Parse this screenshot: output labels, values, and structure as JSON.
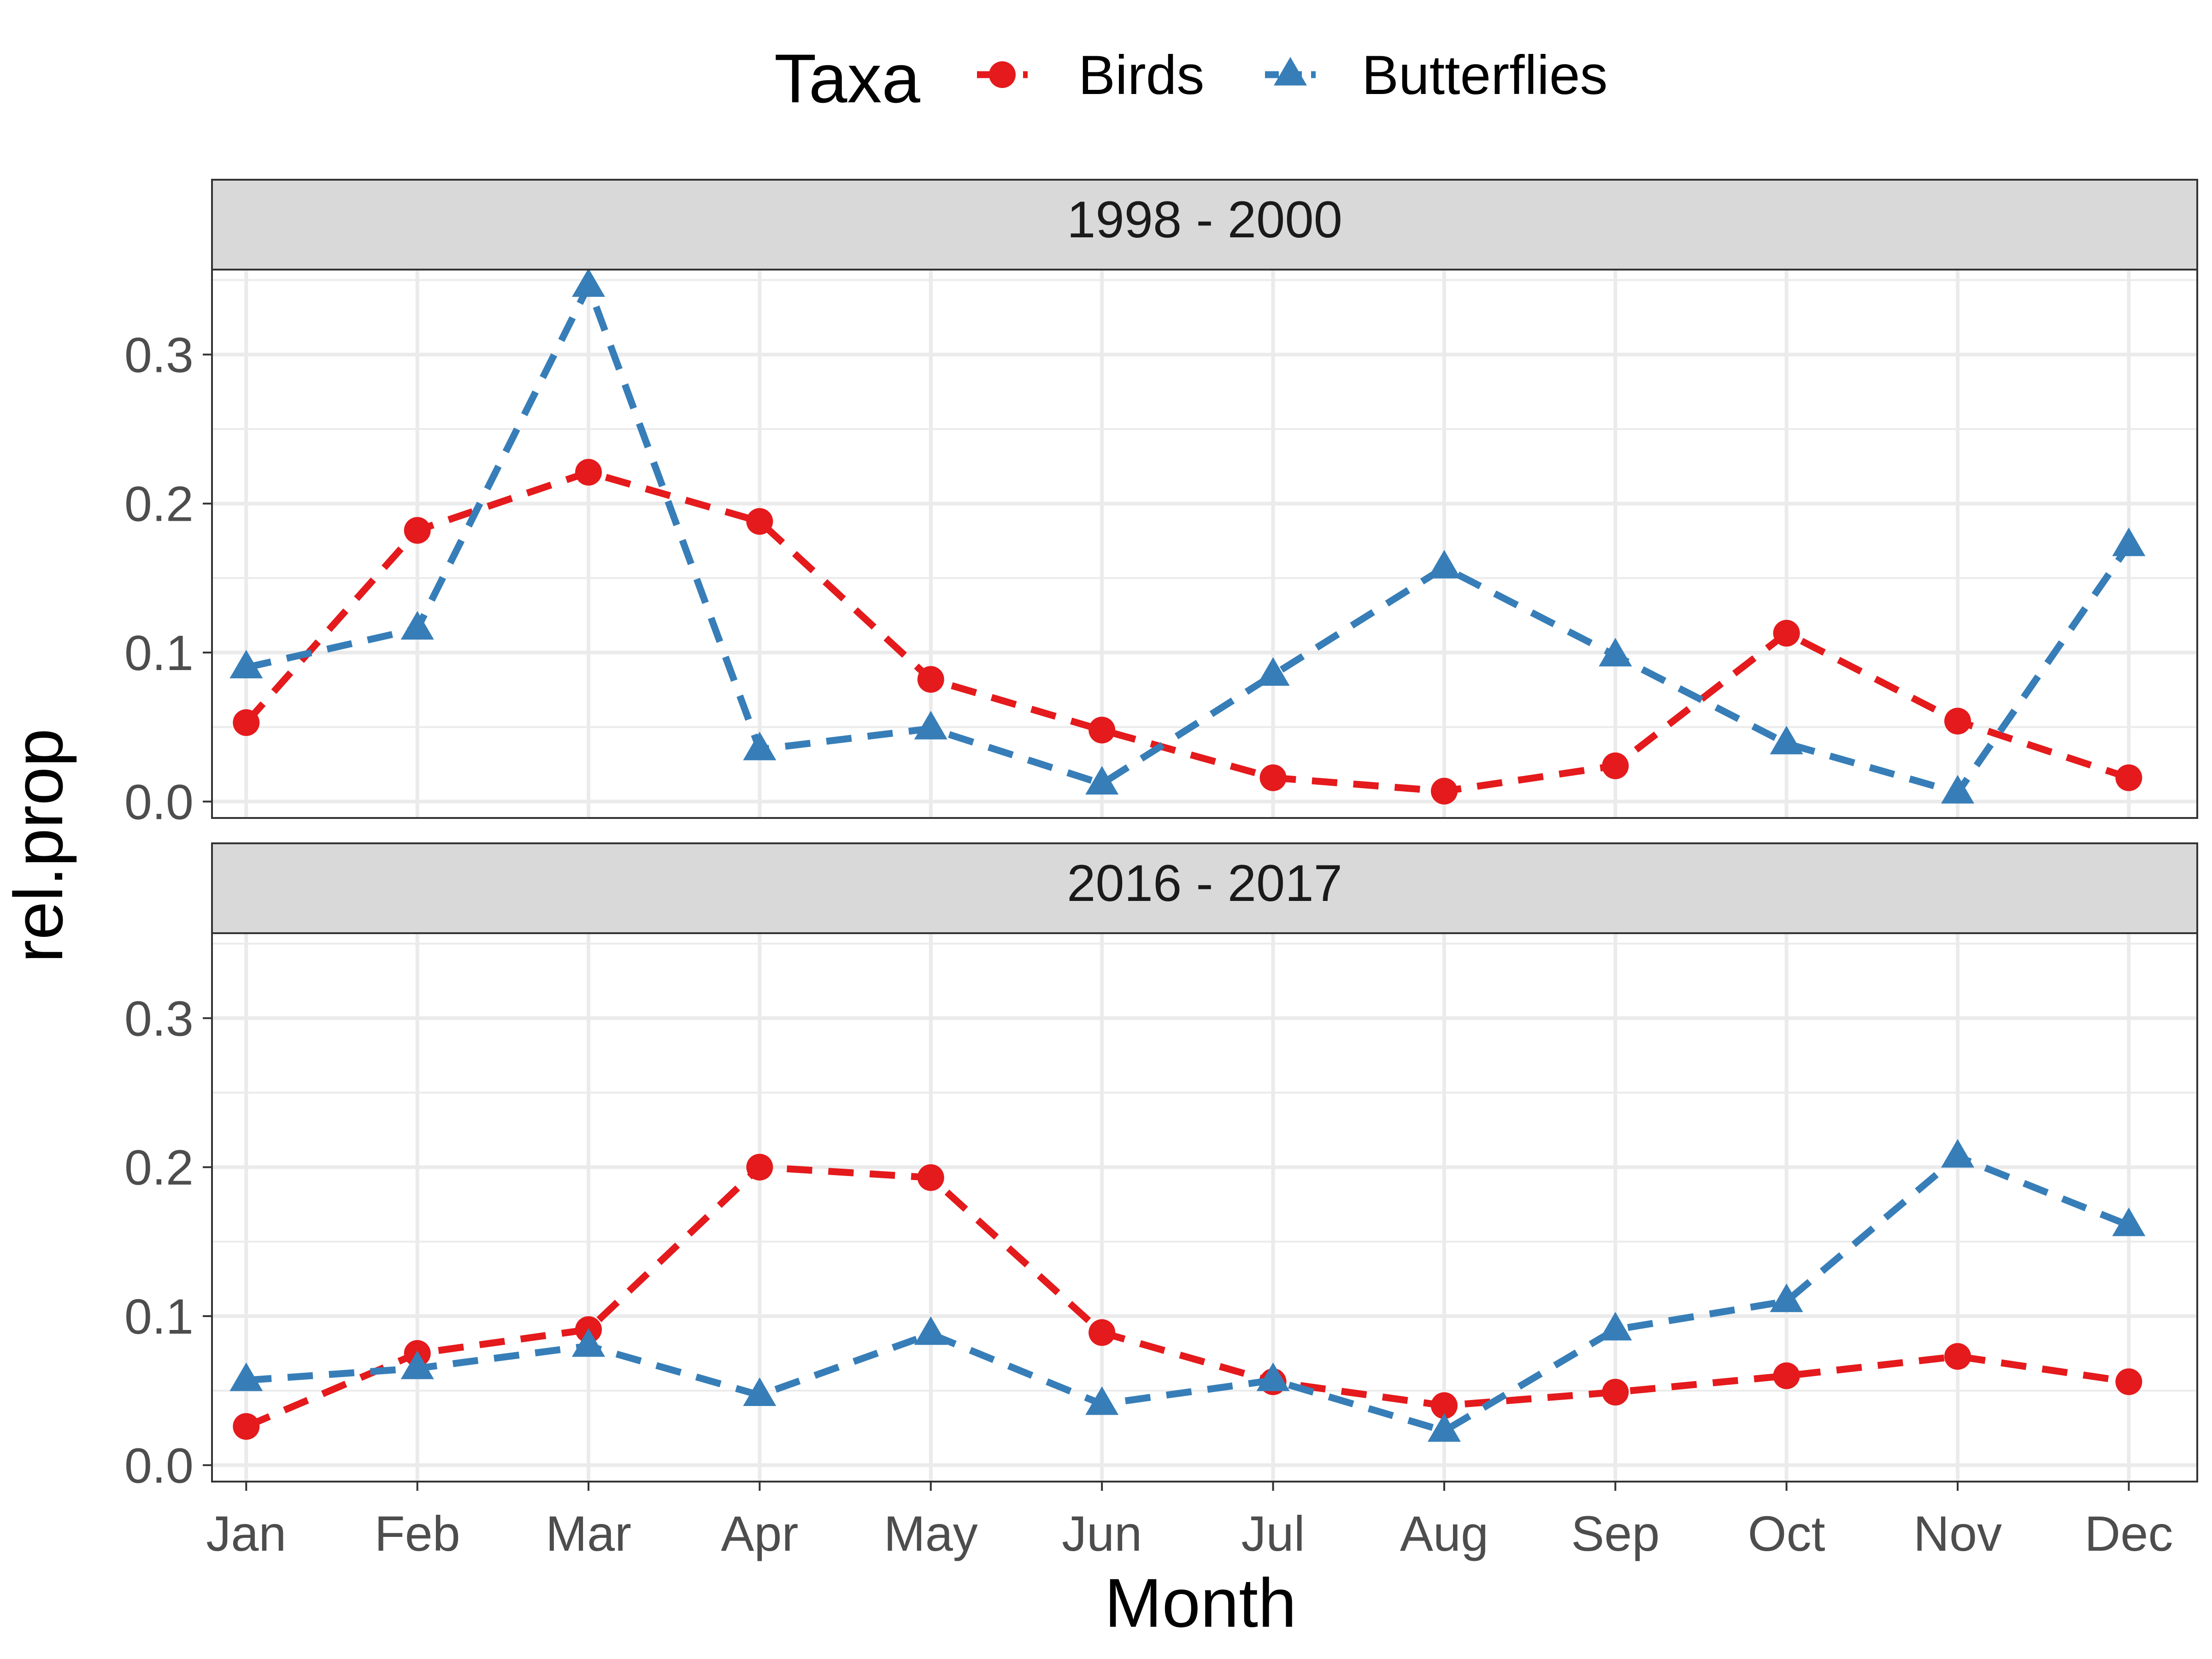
{
  "chart_data": {
    "type": "line",
    "xlabel": "Month",
    "ylabel": "rel.prop",
    "categories": [
      "Jan",
      "Feb",
      "Mar",
      "Apr",
      "May",
      "Jun",
      "Jul",
      "Aug",
      "Sep",
      "Oct",
      "Nov",
      "Dec"
    ],
    "ylim": [
      -0.011,
      0.357
    ],
    "yticks": [
      0.0,
      0.1,
      0.2,
      0.3
    ],
    "ytick_labels": [
      "0.0",
      "0.1",
      "0.2",
      "0.3"
    ],
    "grid": true,
    "legend": {
      "title": "Taxa",
      "placement": "top"
    },
    "series_styles": [
      {
        "name": "Birds",
        "color": "#e41a1c",
        "marker": "circle",
        "line": "dashed"
      },
      {
        "name": "Butterflies",
        "color": "#377eb8",
        "marker": "triangle",
        "line": "dashed"
      }
    ],
    "panels": [
      {
        "label": "1998 - 2000",
        "series": [
          {
            "name": "Birds",
            "values": [
              0.053,
              0.182,
              0.221,
              0.188,
              0.082,
              0.048,
              0.016,
              0.007,
              0.024,
              0.113,
              0.054,
              0.016
            ]
          },
          {
            "name": "Butterflies",
            "values": [
              0.09,
              0.116,
              0.346,
              0.035,
              0.049,
              0.012,
              0.085,
              0.157,
              0.098,
              0.039,
              0.006,
              0.172
            ]
          }
        ]
      },
      {
        "label": "2016 - 2017",
        "series": [
          {
            "name": "Birds",
            "values": [
              0.026,
              0.075,
              0.091,
              0.2,
              0.193,
              0.089,
              0.056,
              0.04,
              0.049,
              0.06,
              0.073,
              0.056
            ]
          },
          {
            "name": "Butterflies",
            "values": [
              0.057,
              0.065,
              0.08,
              0.047,
              0.088,
              0.041,
              0.057,
              0.023,
              0.091,
              0.11,
              0.207,
              0.161
            ]
          }
        ]
      }
    ]
  }
}
